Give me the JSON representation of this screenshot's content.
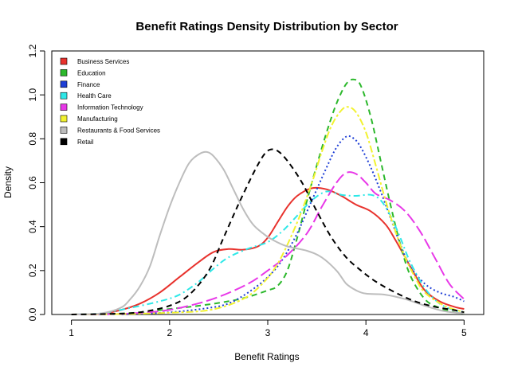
{
  "chart_data": {
    "type": "line",
    "title": "Benefit Ratings Density Distribution by Sector",
    "xlabel": "Benefit Ratings",
    "ylabel": "Density",
    "xlim": [
      0.8,
      5.2
    ],
    "ylim": [
      0,
      1.2
    ],
    "xticks": [
      1,
      2,
      3,
      4,
      5
    ],
    "yticks": [
      0.0,
      0.2,
      0.4,
      0.6,
      0.8,
      1.0,
      1.2
    ],
    "ytick_labels": [
      "0.0",
      "0.2",
      "0.4",
      "0.6",
      "0.8",
      "1.0",
      "1.2"
    ],
    "legend_position": "top-left",
    "series": [
      {
        "name": "Business Services",
        "color": "#e8322d",
        "dash": "solid",
        "points": [
          [
            1.0,
            0.0
          ],
          [
            1.3,
            0.003
          ],
          [
            1.5,
            0.02
          ],
          [
            1.7,
            0.05
          ],
          [
            1.9,
            0.1
          ],
          [
            2.1,
            0.17
          ],
          [
            2.3,
            0.24
          ],
          [
            2.45,
            0.285
          ],
          [
            2.6,
            0.298
          ],
          [
            2.75,
            0.295
          ],
          [
            2.9,
            0.31
          ],
          [
            3.0,
            0.35
          ],
          [
            3.1,
            0.42
          ],
          [
            3.2,
            0.49
          ],
          [
            3.3,
            0.54
          ],
          [
            3.45,
            0.575
          ],
          [
            3.6,
            0.57
          ],
          [
            3.75,
            0.54
          ],
          [
            3.9,
            0.5
          ],
          [
            4.05,
            0.47
          ],
          [
            4.2,
            0.41
          ],
          [
            4.3,
            0.34
          ],
          [
            4.4,
            0.26
          ],
          [
            4.5,
            0.18
          ],
          [
            4.6,
            0.11
          ],
          [
            4.75,
            0.06
          ],
          [
            4.9,
            0.035
          ],
          [
            5.0,
            0.025
          ]
        ]
      },
      {
        "name": "Education",
        "color": "#2cb82c",
        "dash": "dashed",
        "points": [
          [
            1.0,
            0.0
          ],
          [
            1.4,
            0.002
          ],
          [
            1.7,
            0.01
          ],
          [
            2.0,
            0.025
          ],
          [
            2.3,
            0.04
          ],
          [
            2.6,
            0.06
          ],
          [
            2.8,
            0.08
          ],
          [
            3.0,
            0.11
          ],
          [
            3.1,
            0.13
          ],
          [
            3.2,
            0.2
          ],
          [
            3.3,
            0.35
          ],
          [
            3.4,
            0.52
          ],
          [
            3.5,
            0.68
          ],
          [
            3.6,
            0.83
          ],
          [
            3.7,
            0.96
          ],
          [
            3.8,
            1.05
          ],
          [
            3.88,
            1.07
          ],
          [
            3.95,
            1.04
          ],
          [
            4.05,
            0.9
          ],
          [
            4.15,
            0.7
          ],
          [
            4.25,
            0.5
          ],
          [
            4.35,
            0.32
          ],
          [
            4.45,
            0.18
          ],
          [
            4.6,
            0.07
          ],
          [
            4.75,
            0.03
          ],
          [
            4.9,
            0.01
          ],
          [
            5.0,
            0.005
          ]
        ]
      },
      {
        "name": "Finance",
        "color": "#1f3fd6",
        "dash": "dotted",
        "points": [
          [
            1.0,
            0.0
          ],
          [
            1.5,
            0.002
          ],
          [
            2.0,
            0.01
          ],
          [
            2.4,
            0.03
          ],
          [
            2.6,
            0.05
          ],
          [
            2.8,
            0.1
          ],
          [
            3.0,
            0.17
          ],
          [
            3.15,
            0.25
          ],
          [
            3.3,
            0.37
          ],
          [
            3.45,
            0.52
          ],
          [
            3.6,
            0.67
          ],
          [
            3.7,
            0.76
          ],
          [
            3.8,
            0.81
          ],
          [
            3.88,
            0.8
          ],
          [
            3.95,
            0.76
          ],
          [
            4.05,
            0.67
          ],
          [
            4.15,
            0.56
          ],
          [
            4.25,
            0.44
          ],
          [
            4.35,
            0.32
          ],
          [
            4.45,
            0.22
          ],
          [
            4.6,
            0.14
          ],
          [
            4.75,
            0.1
          ],
          [
            4.9,
            0.08
          ],
          [
            5.0,
            0.06
          ]
        ]
      },
      {
        "name": "Health Care",
        "color": "#2ee8e8",
        "dash": "dashdot",
        "points": [
          [
            1.0,
            0.0
          ],
          [
            1.3,
            0.005
          ],
          [
            1.6,
            0.03
          ],
          [
            1.9,
            0.06
          ],
          [
            2.1,
            0.09
          ],
          [
            2.3,
            0.15
          ],
          [
            2.45,
            0.21
          ],
          [
            2.6,
            0.26
          ],
          [
            2.8,
            0.3
          ],
          [
            3.0,
            0.33
          ],
          [
            3.15,
            0.38
          ],
          [
            3.3,
            0.45
          ],
          [
            3.45,
            0.52
          ],
          [
            3.6,
            0.56
          ],
          [
            3.75,
            0.545
          ],
          [
            3.9,
            0.54
          ],
          [
            4.05,
            0.545
          ],
          [
            4.15,
            0.52
          ],
          [
            4.25,
            0.45
          ],
          [
            4.35,
            0.35
          ],
          [
            4.45,
            0.24
          ],
          [
            4.6,
            0.12
          ],
          [
            4.75,
            0.05
          ],
          [
            4.9,
            0.02
          ],
          [
            5.0,
            0.01
          ]
        ]
      },
      {
        "name": "Information Technology",
        "color": "#e838e8",
        "dash": "longdash",
        "points": [
          [
            1.0,
            0.0
          ],
          [
            1.5,
            0.003
          ],
          [
            1.9,
            0.015
          ],
          [
            2.2,
            0.04
          ],
          [
            2.5,
            0.08
          ],
          [
            2.8,
            0.14
          ],
          [
            3.0,
            0.2
          ],
          [
            3.2,
            0.27
          ],
          [
            3.4,
            0.37
          ],
          [
            3.55,
            0.49
          ],
          [
            3.7,
            0.6
          ],
          [
            3.8,
            0.645
          ],
          [
            3.9,
            0.64
          ],
          [
            4.0,
            0.6
          ],
          [
            4.1,
            0.55
          ],
          [
            4.25,
            0.52
          ],
          [
            4.4,
            0.47
          ],
          [
            4.55,
            0.38
          ],
          [
            4.7,
            0.26
          ],
          [
            4.85,
            0.14
          ],
          [
            5.0,
            0.07
          ]
        ]
      },
      {
        "name": "Manufacturing",
        "color": "#f2f230",
        "dash": "twodash",
        "points": [
          [
            1.0,
            0.0
          ],
          [
            1.5,
            0.002
          ],
          [
            2.0,
            0.008
          ],
          [
            2.4,
            0.02
          ],
          [
            2.7,
            0.06
          ],
          [
            2.9,
            0.12
          ],
          [
            3.1,
            0.23
          ],
          [
            3.3,
            0.42
          ],
          [
            3.45,
            0.6
          ],
          [
            3.55,
            0.74
          ],
          [
            3.65,
            0.86
          ],
          [
            3.75,
            0.93
          ],
          [
            3.82,
            0.945
          ],
          [
            3.9,
            0.92
          ],
          [
            4.0,
            0.83
          ],
          [
            4.1,
            0.68
          ],
          [
            4.2,
            0.52
          ],
          [
            4.3,
            0.38
          ],
          [
            4.4,
            0.26
          ],
          [
            4.5,
            0.17
          ],
          [
            4.6,
            0.1
          ],
          [
            4.8,
            0.04
          ],
          [
            5.0,
            0.01
          ]
        ]
      },
      {
        "name": "Restaurants & Food Services",
        "color": "#bdbdbd",
        "dash": "solid",
        "points": [
          [
            1.0,
            0.0
          ],
          [
            1.3,
            0.005
          ],
          [
            1.5,
            0.03
          ],
          [
            1.6,
            0.07
          ],
          [
            1.7,
            0.13
          ],
          [
            1.8,
            0.22
          ],
          [
            1.9,
            0.36
          ],
          [
            2.0,
            0.49
          ],
          [
            2.1,
            0.6
          ],
          [
            2.2,
            0.69
          ],
          [
            2.3,
            0.73
          ],
          [
            2.38,
            0.74
          ],
          [
            2.45,
            0.72
          ],
          [
            2.55,
            0.66
          ],
          [
            2.65,
            0.57
          ],
          [
            2.75,
            0.48
          ],
          [
            2.85,
            0.41
          ],
          [
            2.95,
            0.37
          ],
          [
            3.05,
            0.34
          ],
          [
            3.2,
            0.31
          ],
          [
            3.4,
            0.29
          ],
          [
            3.55,
            0.26
          ],
          [
            3.7,
            0.2
          ],
          [
            3.8,
            0.14
          ],
          [
            3.9,
            0.11
          ],
          [
            4.0,
            0.095
          ],
          [
            4.2,
            0.09
          ],
          [
            4.4,
            0.07
          ],
          [
            4.6,
            0.04
          ],
          [
            4.8,
            0.015
          ],
          [
            5.0,
            0.005
          ]
        ]
      },
      {
        "name": "Retail",
        "color": "#000000",
        "dash": "dashed",
        "points": [
          [
            1.0,
            0.0
          ],
          [
            1.4,
            0.003
          ],
          [
            1.7,
            0.01
          ],
          [
            2.0,
            0.04
          ],
          [
            2.2,
            0.09
          ],
          [
            2.4,
            0.2
          ],
          [
            2.55,
            0.35
          ],
          [
            2.7,
            0.5
          ],
          [
            2.85,
            0.64
          ],
          [
            2.95,
            0.72
          ],
          [
            3.02,
            0.75
          ],
          [
            3.1,
            0.745
          ],
          [
            3.2,
            0.7
          ],
          [
            3.35,
            0.6
          ],
          [
            3.5,
            0.47
          ],
          [
            3.65,
            0.35
          ],
          [
            3.8,
            0.26
          ],
          [
            3.95,
            0.2
          ],
          [
            4.1,
            0.15
          ],
          [
            4.3,
            0.1
          ],
          [
            4.5,
            0.06
          ],
          [
            4.7,
            0.035
          ],
          [
            4.9,
            0.02
          ],
          [
            5.0,
            0.01
          ]
        ]
      }
    ]
  }
}
